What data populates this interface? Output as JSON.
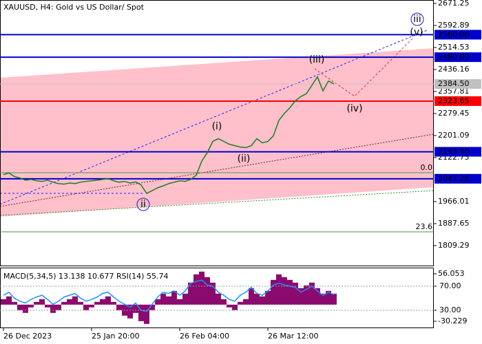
{
  "chart_data": [
    {
      "type": "line",
      "title": "XAUUSD, H4:  Gold vs US Dollar/ Spot",
      "categories": [
        "26 Dec 2023",
        null,
        null,
        null,
        null,
        null,
        null,
        null,
        null,
        null,
        null,
        null,
        null,
        null,
        null,
        null,
        "25 Jan 20:00",
        null,
        null,
        null,
        null,
        null,
        null,
        null,
        null,
        null,
        null,
        null,
        null,
        null,
        null,
        null,
        "26 Feb 04:00",
        null,
        null,
        null,
        null,
        null,
        null,
        null,
        null,
        null,
        null,
        null,
        null,
        null,
        null,
        null,
        "26 Mar 12:00",
        null,
        null,
        null,
        null,
        null,
        null,
        null,
        null,
        null,
        null,
        null,
        null
      ],
      "series": [
        {
          "color": "#1f7a1f",
          "values": [
            2062,
            2068,
            2055,
            2050,
            2042,
            2045,
            2040,
            2038,
            2042,
            2035,
            2030,
            2028,
            2032,
            2030,
            2035,
            2038,
            2040,
            2042,
            2045,
            2048,
            2040,
            2035,
            2038,
            2032,
            2036,
            2025,
            1995,
            2005,
            2015,
            2022,
            2030,
            2035,
            2040,
            2038,
            2045,
            2060,
            2110,
            2140,
            2180,
            2190,
            2180,
            2170,
            2165,
            2160,
            2158,
            2165,
            2190,
            2175,
            2180,
            2200,
            2255,
            2280,
            2300,
            2325,
            2340,
            2350,
            2380,
            2410,
            2360,
            2395,
            2385
          ]
        }
      ],
      "ylim": [
        1735.8,
        2683.5
      ],
      "yticks": [
        2671.25,
        2592.89,
        2514.53,
        2436.16,
        2357.81,
        2279.45,
        2201.09,
        2122.73,
        1966.01,
        1887.65,
        1809.29
      ],
      "levels": [
        {
          "value": 2560,
          "label": "2560.00",
          "color": "#0000cc"
        },
        {
          "value": 2480,
          "label": "2480.00",
          "color": "#0000cc"
        },
        {
          "value": 2384.5,
          "label": "2384.50",
          "color": "#c0c0c0"
        },
        {
          "value": 2323.65,
          "label": "2323.65",
          "color": "#ff0000"
        },
        {
          "value": 2143.3,
          "label": "2143.30",
          "color": "#0000cc"
        },
        {
          "value": 2047.26,
          "label": "2047.26",
          "color": "#0000cc"
        }
      ],
      "fib_levels": [
        {
          "value": 2068.8,
          "label": "0.0",
          "color": "#3c9a3c"
        },
        {
          "value": 1858.3,
          "label": "23.6",
          "color": "#3c9a3c"
        }
      ],
      "annotations": [
        {
          "text": "(i)",
          "color": "#d03030"
        },
        {
          "text": "(ii)",
          "color": "#d03030"
        },
        {
          "text": "(iii)",
          "color": "#d03030"
        },
        {
          "text": "(iv)",
          "color": "#d03030"
        },
        {
          "text": "(v)",
          "color": "#d03030"
        },
        {
          "text": "ii",
          "color": "#1a1acc"
        },
        {
          "text": "iii",
          "color": "#1a1acc"
        }
      ]
    },
    {
      "type": "bar",
      "title": "MACD(5,34,5) 13.138 10.677 RSI(14) 55.74",
      "series": [
        {
          "color": "#8b0a6e",
          "values": [
            10,
            15,
            5,
            -10,
            -15,
            -5,
            5,
            10,
            -5,
            -15,
            -10,
            5,
            10,
            15,
            5,
            -10,
            -5,
            5,
            10,
            15,
            5,
            -10,
            -20,
            -25,
            -15,
            -30,
            -35,
            -10,
            10,
            20,
            15,
            25,
            10,
            20,
            40,
            55,
            60,
            50,
            40,
            20,
            10,
            -5,
            -10,
            5,
            10,
            30,
            20,
            15,
            25,
            45,
            55,
            50,
            45,
            40,
            30,
            35,
            40,
            30,
            20,
            25,
            20
          ]
        },
        {
          "type": "line",
          "axis": "y2",
          "color": "#1e90ff",
          "values": [
            55,
            60,
            50,
            45,
            42,
            48,
            52,
            55,
            48,
            40,
            45,
            52,
            55,
            58,
            50,
            45,
            48,
            52,
            58,
            60,
            52,
            45,
            40,
            35,
            42,
            30,
            28,
            40,
            52,
            60,
            58,
            62,
            55,
            62,
            75,
            78,
            80,
            72,
            70,
            60,
            55,
            48,
            45,
            55,
            60,
            68,
            58,
            55,
            62,
            72,
            75,
            72,
            70,
            68,
            60,
            65,
            70,
            62,
            55,
            60,
            56
          ]
        }
      ],
      "ylim": [
        -41.5,
        66
      ],
      "yticks": [
        56.053,
        -30.229
      ],
      "y2lim": [
        1.4,
        99.7
      ],
      "y2ticks": [
        {
          "value": 70,
          "label": "70.00"
        },
        {
          "value": 30,
          "label": "30.00"
        }
      ]
    }
  ]
}
